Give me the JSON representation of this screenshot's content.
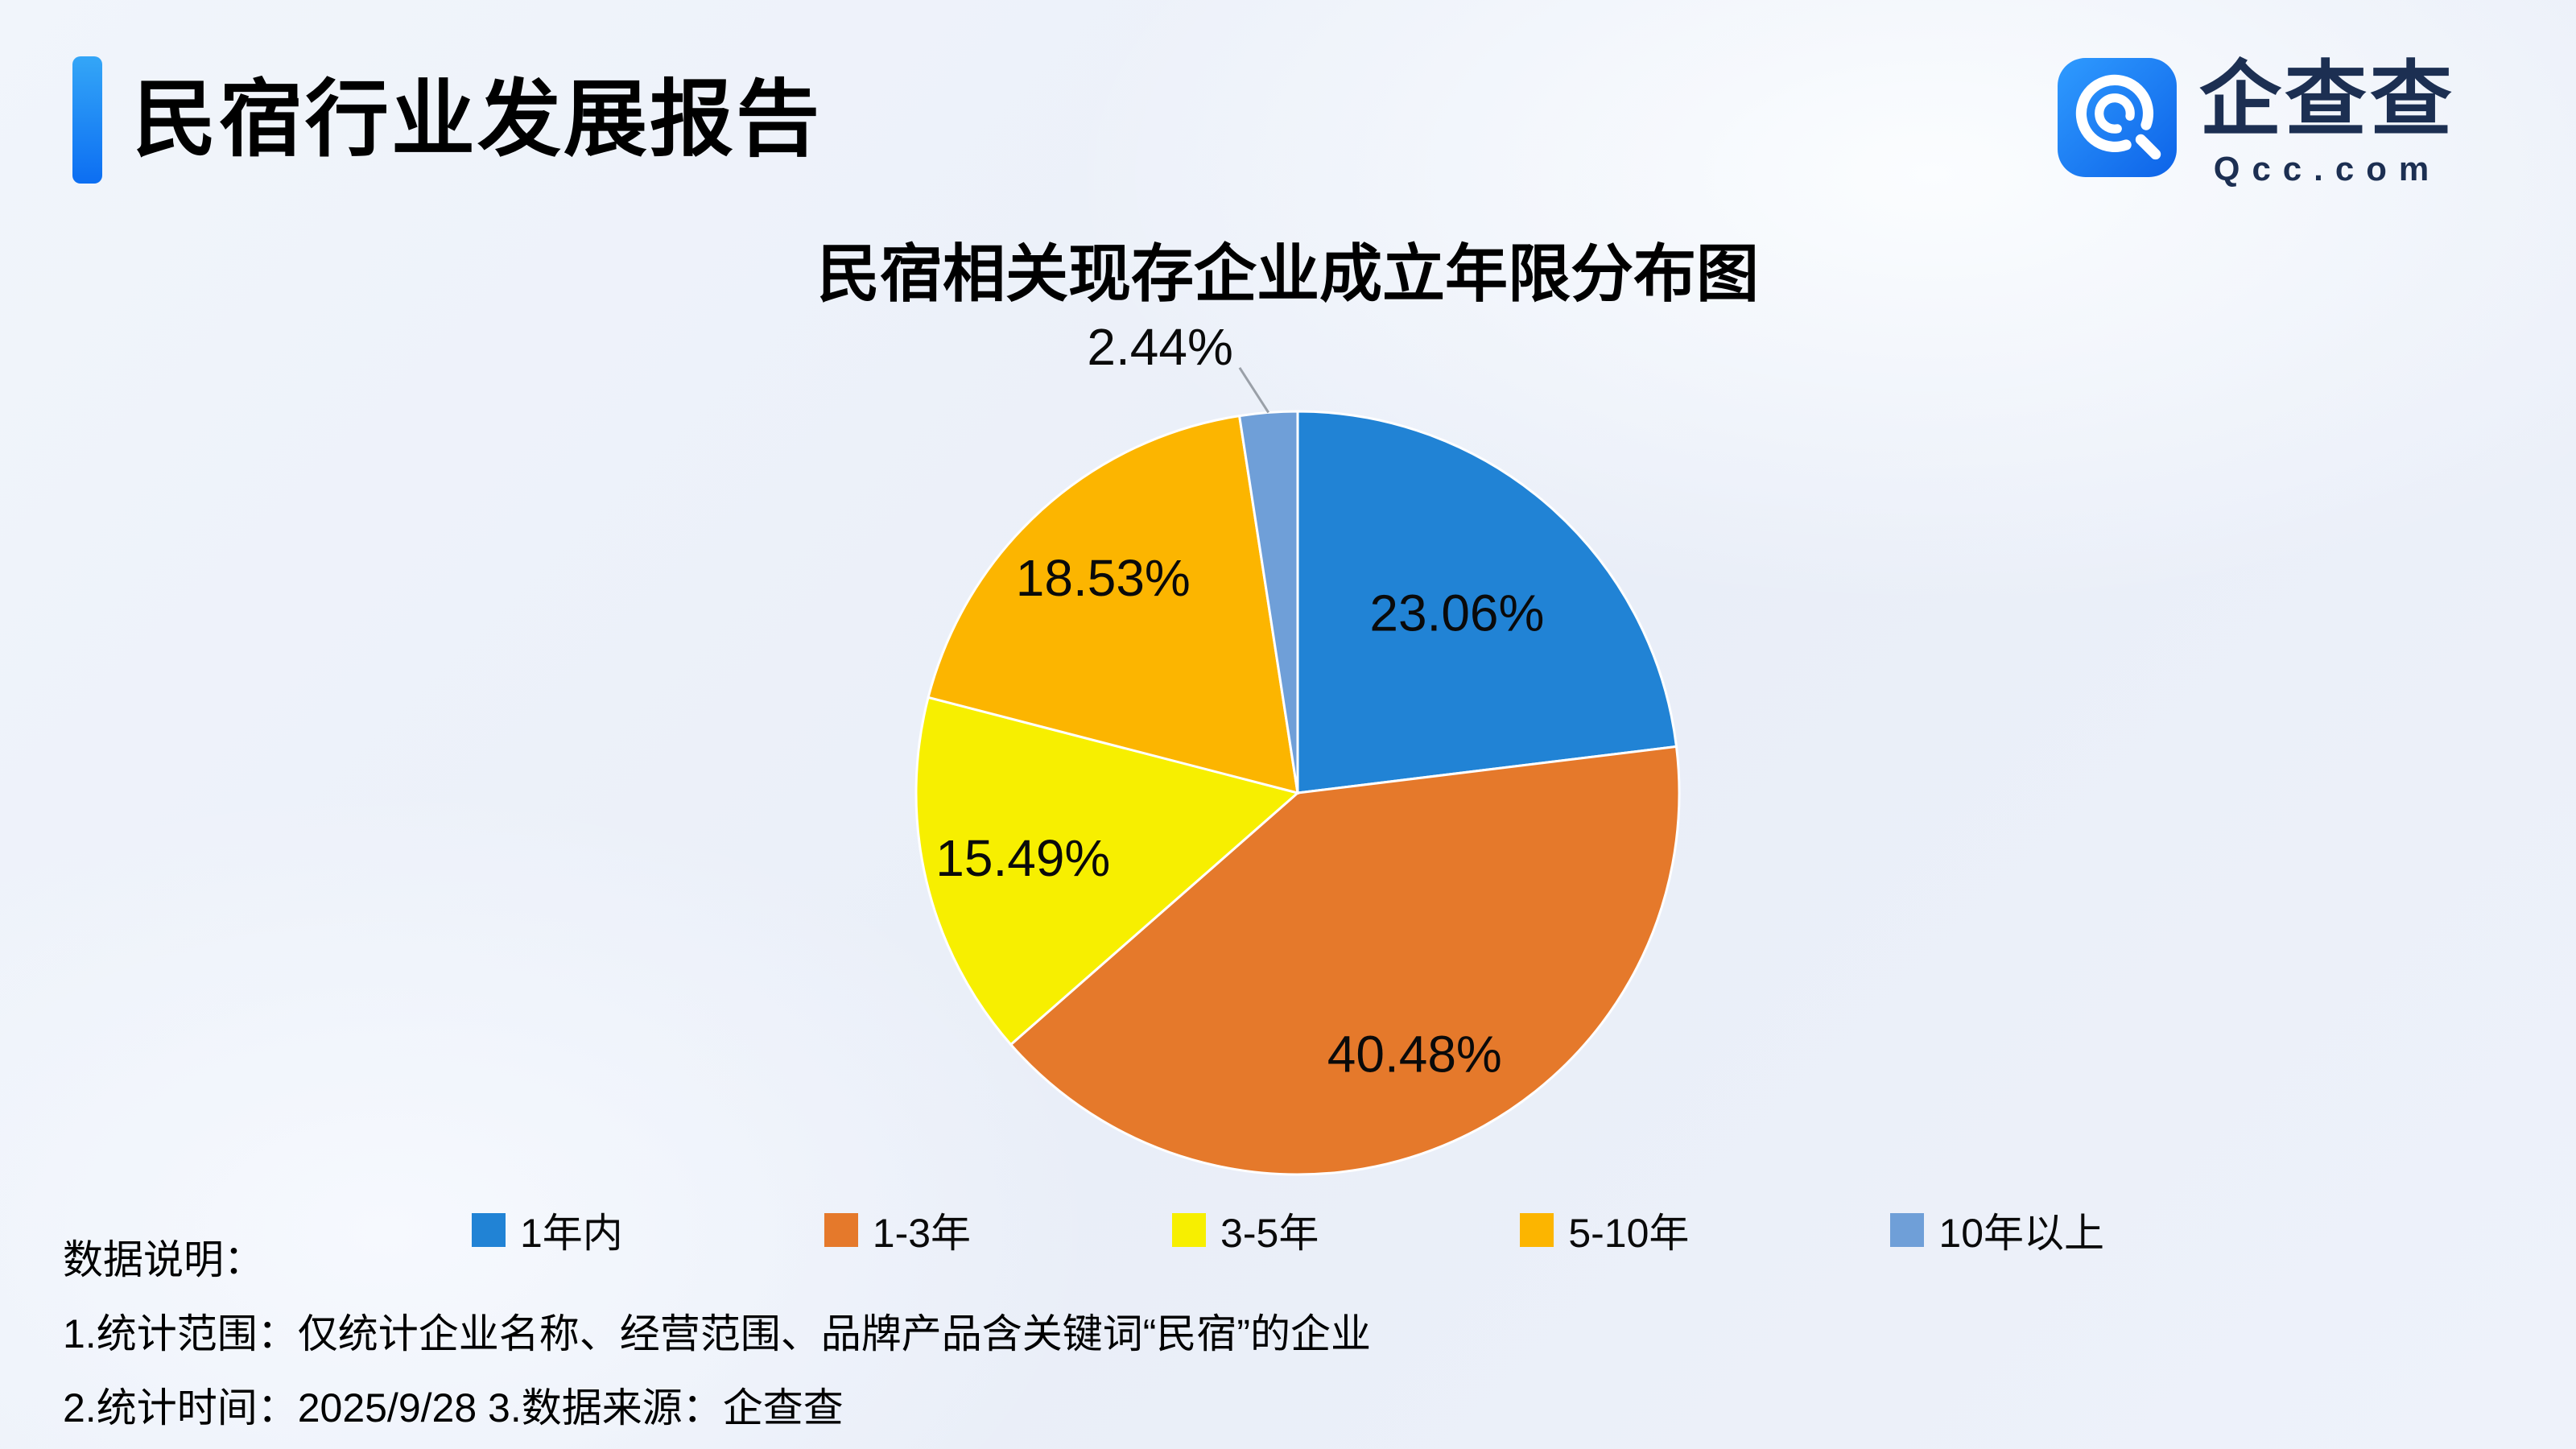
{
  "header": {
    "title": "民宿行业发展报告",
    "logo": {
      "brand": "企查查",
      "domain": "Qcc.com"
    }
  },
  "chart_data": {
    "type": "pie",
    "title": "民宿相关现存企业成立年限分布图",
    "categories": [
      "1年内",
      "1-3年",
      "3-5年",
      "5-10年",
      "10年以上"
    ],
    "values": [
      23.06,
      40.48,
      15.49,
      18.53,
      2.44
    ],
    "labels": [
      "23.06%",
      "40.48%",
      "15.49%",
      "18.53%",
      "2.44%"
    ],
    "colors": [
      "#2183d5",
      "#e5792b",
      "#f7ef00",
      "#fcb500",
      "#6f9fd8"
    ],
    "start_angle_deg": -90,
    "direction": "clockwise",
    "legend_position": "bottom",
    "outside_label_threshold_pct": 5,
    "accent_color": "#0c6ef2",
    "logo_color": "#1677f0"
  },
  "footer": {
    "heading": "数据说明：",
    "line1": "1.统计范围：仅统计企业名称、经营范围、品牌产品含关键词“民宿”的企业",
    "line2": " 2.统计时间：2025/9/28  3.数据来源：企查查"
  }
}
